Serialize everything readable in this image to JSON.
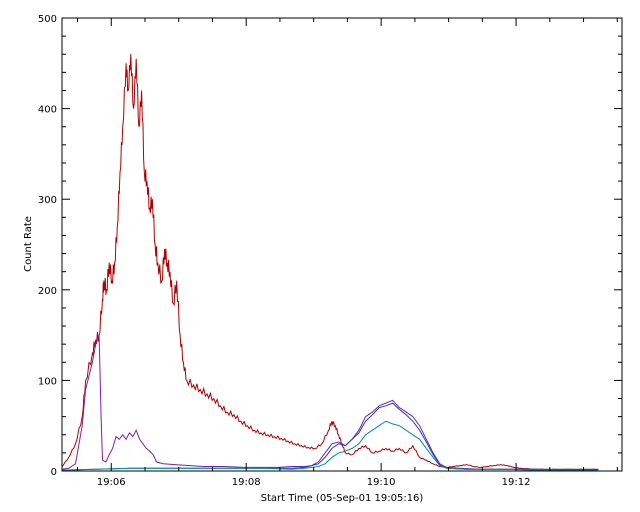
{
  "chart_data": {
    "type": "line",
    "title": "",
    "xlabel": "Start Time (05-Sep-01 19:05:16)",
    "ylabel": "Count Rate",
    "x_unit": "minutes since 19:05:16",
    "xlim": [
      0,
      8.3
    ],
    "ylim": [
      0,
      500
    ],
    "x_ticks": [
      {
        "value": 0.73,
        "label": "19:06"
      },
      {
        "value": 2.73,
        "label": "19:08"
      },
      {
        "value": 4.73,
        "label": "19:10"
      },
      {
        "value": 6.73,
        "label": "19:12"
      }
    ],
    "y_ticks": [
      {
        "value": 0,
        "label": "0"
      },
      {
        "value": 100,
        "label": "100"
      },
      {
        "value": 200,
        "label": "200"
      },
      {
        "value": 300,
        "label": "300"
      },
      {
        "value": 400,
        "label": "400"
      },
      {
        "value": 500,
        "label": "500"
      }
    ],
    "grid": false,
    "series": [
      {
        "color": "#b00000",
        "points": [
          [
            0.0,
            5
          ],
          [
            0.1,
            15
          ],
          [
            0.2,
            30
          ],
          [
            0.3,
            60
          ],
          [
            0.35,
            100
          ],
          [
            0.45,
            130
          ],
          [
            0.5,
            145
          ],
          [
            0.55,
            150
          ],
          [
            0.6,
            190
          ],
          [
            0.62,
            210
          ],
          [
            0.66,
            200
          ],
          [
            0.7,
            230
          ],
          [
            0.74,
            210
          ],
          [
            0.78,
            230
          ],
          [
            0.82,
            270
          ],
          [
            0.86,
            330
          ],
          [
            0.9,
            380
          ],
          [
            0.95,
            450
          ],
          [
            0.98,
            420
          ],
          [
            1.02,
            460
          ],
          [
            1.06,
            400
          ],
          [
            1.1,
            455
          ],
          [
            1.14,
            380
          ],
          [
            1.18,
            420
          ],
          [
            1.22,
            330
          ],
          [
            1.26,
            320
          ],
          [
            1.3,
            290
          ],
          [
            1.34,
            300
          ],
          [
            1.38,
            250
          ],
          [
            1.42,
            230
          ],
          [
            1.48,
            210
          ],
          [
            1.52,
            245
          ],
          [
            1.56,
            230
          ],
          [
            1.6,
            220
          ],
          [
            1.65,
            185
          ],
          [
            1.7,
            210
          ],
          [
            1.75,
            150
          ],
          [
            1.8,
            120
          ],
          [
            1.85,
            100
          ],
          [
            1.95,
            95
          ],
          [
            2.05,
            90
          ],
          [
            2.15,
            85
          ],
          [
            2.25,
            80
          ],
          [
            2.35,
            72
          ],
          [
            2.45,
            65
          ],
          [
            2.55,
            62
          ],
          [
            2.65,
            55
          ],
          [
            2.75,
            50
          ],
          [
            2.85,
            45
          ],
          [
            2.95,
            42
          ],
          [
            3.05,
            40
          ],
          [
            3.15,
            38
          ],
          [
            3.25,
            36
          ],
          [
            3.35,
            33
          ],
          [
            3.45,
            30
          ],
          [
            3.55,
            28
          ],
          [
            3.65,
            26
          ],
          [
            3.75,
            25
          ],
          [
            3.85,
            30
          ],
          [
            3.95,
            45
          ],
          [
            4.0,
            55
          ],
          [
            4.05,
            50
          ],
          [
            4.1,
            40
          ],
          [
            4.15,
            30
          ],
          [
            4.2,
            20
          ],
          [
            4.3,
            18
          ],
          [
            4.4,
            25
          ],
          [
            4.5,
            28
          ],
          [
            4.6,
            20
          ],
          [
            4.7,
            22
          ],
          [
            4.8,
            25
          ],
          [
            4.9,
            22
          ],
          [
            5.0,
            25
          ],
          [
            5.1,
            20
          ],
          [
            5.2,
            28
          ],
          [
            5.3,
            15
          ],
          [
            5.4,
            12
          ],
          [
            5.5,
            8
          ],
          [
            5.6,
            5
          ],
          [
            5.7,
            4
          ],
          [
            5.8,
            5
          ],
          [
            5.9,
            6
          ],
          [
            6.0,
            7
          ],
          [
            6.1,
            5
          ],
          [
            6.2,
            4
          ],
          [
            6.3,
            5
          ],
          [
            6.4,
            6
          ],
          [
            6.5,
            7
          ],
          [
            6.6,
            6
          ],
          [
            6.7,
            4
          ],
          [
            6.8,
            3
          ],
          [
            7.0,
            2
          ],
          [
            7.2,
            2
          ],
          [
            7.4,
            2
          ],
          [
            7.6,
            2
          ],
          [
            7.8,
            2
          ],
          [
            7.95,
            2
          ]
        ]
      },
      {
        "color": "#7a1fb0",
        "points": [
          [
            0.0,
            2
          ],
          [
            0.1,
            3
          ],
          [
            0.2,
            8
          ],
          [
            0.3,
            50
          ],
          [
            0.35,
            90
          ],
          [
            0.45,
            120
          ],
          [
            0.5,
            140
          ],
          [
            0.55,
            150
          ],
          [
            0.58,
            60
          ],
          [
            0.6,
            12
          ],
          [
            0.65,
            10
          ],
          [
            0.7,
            18
          ],
          [
            0.75,
            25
          ],
          [
            0.8,
            38
          ],
          [
            0.85,
            35
          ],
          [
            0.9,
            40
          ],
          [
            0.95,
            35
          ],
          [
            1.0,
            42
          ],
          [
            1.05,
            38
          ],
          [
            1.1,
            45
          ],
          [
            1.15,
            35
          ],
          [
            1.2,
            30
          ],
          [
            1.25,
            25
          ],
          [
            1.3,
            22
          ],
          [
            1.35,
            18
          ],
          [
            1.4,
            10
          ],
          [
            1.5,
            8
          ],
          [
            1.7,
            7
          ],
          [
            1.9,
            6
          ],
          [
            2.1,
            5
          ],
          [
            2.4,
            5
          ],
          [
            2.7,
            4
          ],
          [
            3.0,
            4
          ],
          [
            3.2,
            4
          ],
          [
            3.4,
            5
          ],
          [
            3.6,
            5
          ],
          [
            3.7,
            6
          ],
          [
            3.8,
            10
          ],
          [
            3.9,
            20
          ],
          [
            4.0,
            30
          ],
          [
            4.1,
            32
          ],
          [
            4.2,
            28
          ],
          [
            4.3,
            35
          ],
          [
            4.4,
            45
          ],
          [
            4.5,
            60
          ],
          [
            4.6,
            65
          ],
          [
            4.7,
            72
          ],
          [
            4.8,
            75
          ],
          [
            4.9,
            78
          ],
          [
            5.0,
            70
          ],
          [
            5.1,
            65
          ],
          [
            5.2,
            60
          ],
          [
            5.3,
            50
          ],
          [
            5.4,
            35
          ],
          [
            5.5,
            20
          ],
          [
            5.6,
            8
          ],
          [
            5.7,
            4
          ],
          [
            5.9,
            3
          ],
          [
            6.2,
            2
          ],
          [
            6.5,
            2
          ],
          [
            7.0,
            2
          ],
          [
            7.5,
            1
          ],
          [
            7.95,
            1
          ]
        ]
      },
      {
        "color": "#2040d0",
        "points": [
          [
            0.0,
            1
          ],
          [
            0.5,
            2
          ],
          [
            1.0,
            3
          ],
          [
            1.5,
            3
          ],
          [
            2.0,
            3
          ],
          [
            2.5,
            3
          ],
          [
            3.0,
            3
          ],
          [
            3.4,
            3
          ],
          [
            3.6,
            4
          ],
          [
            3.8,
            8
          ],
          [
            3.9,
            15
          ],
          [
            4.0,
            25
          ],
          [
            4.1,
            30
          ],
          [
            4.2,
            28
          ],
          [
            4.3,
            35
          ],
          [
            4.4,
            42
          ],
          [
            4.5,
            55
          ],
          [
            4.6,
            62
          ],
          [
            4.7,
            70
          ],
          [
            4.8,
            72
          ],
          [
            4.9,
            75
          ],
          [
            5.0,
            68
          ],
          [
            5.1,
            62
          ],
          [
            5.2,
            55
          ],
          [
            5.3,
            45
          ],
          [
            5.4,
            32
          ],
          [
            5.5,
            18
          ],
          [
            5.6,
            7
          ],
          [
            5.7,
            3
          ],
          [
            6.0,
            2
          ],
          [
            6.5,
            2
          ],
          [
            7.0,
            2
          ],
          [
            7.5,
            1
          ],
          [
            7.95,
            1
          ]
        ]
      },
      {
        "color": "#009090",
        "points": [
          [
            0.0,
            1
          ],
          [
            0.5,
            2
          ],
          [
            1.0,
            3
          ],
          [
            1.5,
            3
          ],
          [
            2.0,
            3
          ],
          [
            2.5,
            3
          ],
          [
            3.0,
            3
          ],
          [
            3.4,
            2
          ],
          [
            3.6,
            3
          ],
          [
            3.8,
            5
          ],
          [
            3.9,
            8
          ],
          [
            4.0,
            15
          ],
          [
            4.1,
            20
          ],
          [
            4.2,
            22
          ],
          [
            4.3,
            25
          ],
          [
            4.4,
            30
          ],
          [
            4.5,
            40
          ],
          [
            4.6,
            45
          ],
          [
            4.7,
            50
          ],
          [
            4.8,
            55
          ],
          [
            4.9,
            52
          ],
          [
            5.0,
            50
          ],
          [
            5.1,
            45
          ],
          [
            5.2,
            40
          ],
          [
            5.3,
            35
          ],
          [
            5.4,
            25
          ],
          [
            5.5,
            15
          ],
          [
            5.6,
            6
          ],
          [
            5.7,
            3
          ],
          [
            6.0,
            2
          ],
          [
            6.5,
            2
          ],
          [
            7.0,
            1
          ],
          [
            7.5,
            1
          ],
          [
            7.95,
            1
          ]
        ]
      }
    ]
  }
}
